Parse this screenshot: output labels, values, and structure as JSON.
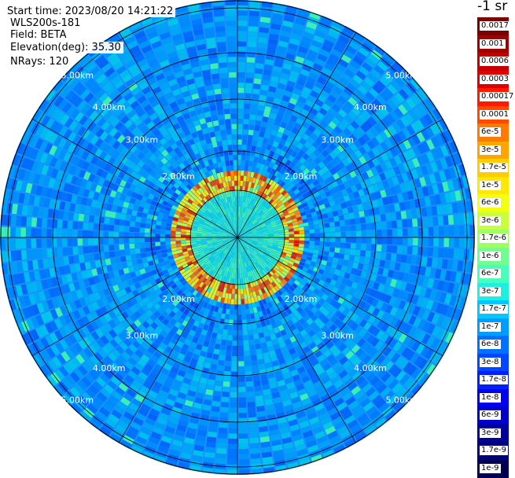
{
  "info": {
    "start_time": "Start time: 2023/08/20 14:21:22",
    "instrument": "WLS200s-181",
    "field": "Field: BETA",
    "elevation": "Elevation(deg): 35.30",
    "nrays": "NRays: 120"
  },
  "colorbar": {
    "title": "-1 sr",
    "labels": [
      "0.0017",
      "0.001",
      "0.0006",
      "0.0003",
      "0.00017",
      "0.0001",
      "6e-5",
      "3e-5",
      "1.7e-5",
      "1e-5",
      "6e-6",
      "3e-6",
      "1.7e-6",
      "1e-6",
      "6e-7",
      "3e-7",
      "1.7e-7",
      "1e-7",
      "6e-8",
      "3e-8",
      "1.7e-8",
      "1e-8",
      "6e-9",
      "3e-9",
      "1.7e-9",
      "1e-9"
    ],
    "colors": [
      "#7a0000",
      "#a00000",
      "#c40000",
      "#e00000",
      "#ff1a00",
      "#ff4a00",
      "#ff7a00",
      "#ffa400",
      "#ffcc00",
      "#ffe800",
      "#f2ff10",
      "#c8ff3a",
      "#9cff64",
      "#70ff8f",
      "#45ffba",
      "#1ef0e0",
      "#00c8ff",
      "#009cff",
      "#0070ff",
      "#0048ff",
      "#0020ff",
      "#0000f0",
      "#0000c8",
      "#00009c",
      "#000078",
      "#000050"
    ]
  },
  "range_rings": {
    "labels": [
      "2.00km",
      "3.00km",
      "4.00km",
      "5.00km"
    ]
  }
}
